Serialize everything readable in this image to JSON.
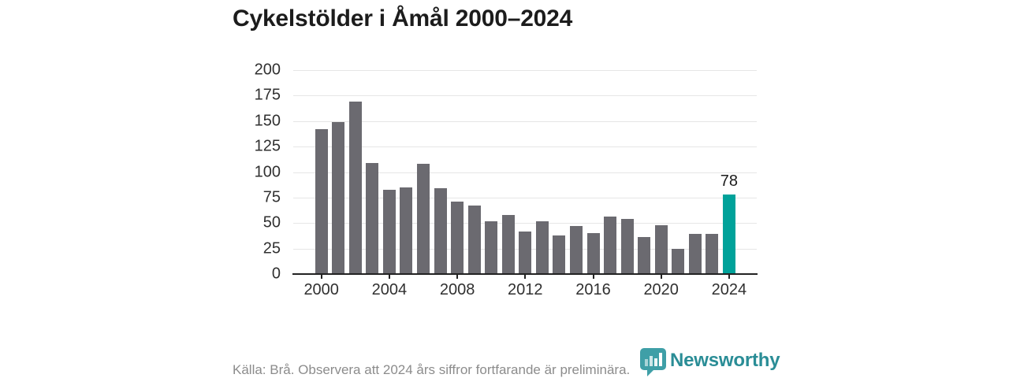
{
  "header": {
    "title": "Cykelstölder i Åmål 2000–2024"
  },
  "footer": {
    "source_note": "Källa: Brå. Observera att 2024 års siffror fortfarande är preliminära.",
    "brand_name": "Newsworthy"
  },
  "colors": {
    "bar": "#6b6a70",
    "bar_highlight": "#00a29a",
    "grid": "#e6e6e6",
    "axis": "#222222",
    "title_text": "#1c1c1c",
    "tick_text": "#303030",
    "footer_text": "#8c8c8c",
    "brand_teal": "#2a8d96",
    "logo_bubble": "#3f9fa7"
  },
  "chart_data": {
    "type": "bar",
    "title": "Cykelstölder i Åmål 2000–2024",
    "x": [
      2000,
      2001,
      2002,
      2003,
      2004,
      2005,
      2006,
      2007,
      2008,
      2009,
      2010,
      2011,
      2012,
      2013,
      2014,
      2015,
      2016,
      2017,
      2018,
      2019,
      2020,
      2021,
      2022,
      2023,
      2024
    ],
    "values": [
      142,
      149,
      169,
      109,
      83,
      85,
      108,
      84,
      71,
      67,
      52,
      58,
      42,
      52,
      38,
      47,
      40,
      56,
      54,
      36,
      48,
      25,
      39,
      39,
      78
    ],
    "highlight_year": 2024,
    "highlight_value_label": "78",
    "xlabel": "",
    "ylabel": "",
    "ylim": [
      0,
      200
    ],
    "yticks": [
      0,
      25,
      50,
      75,
      100,
      125,
      150,
      175,
      200
    ],
    "xticks": [
      2000,
      2004,
      2008,
      2012,
      2016,
      2020,
      2024
    ],
    "grid": "horizontal",
    "legend": "none"
  }
}
